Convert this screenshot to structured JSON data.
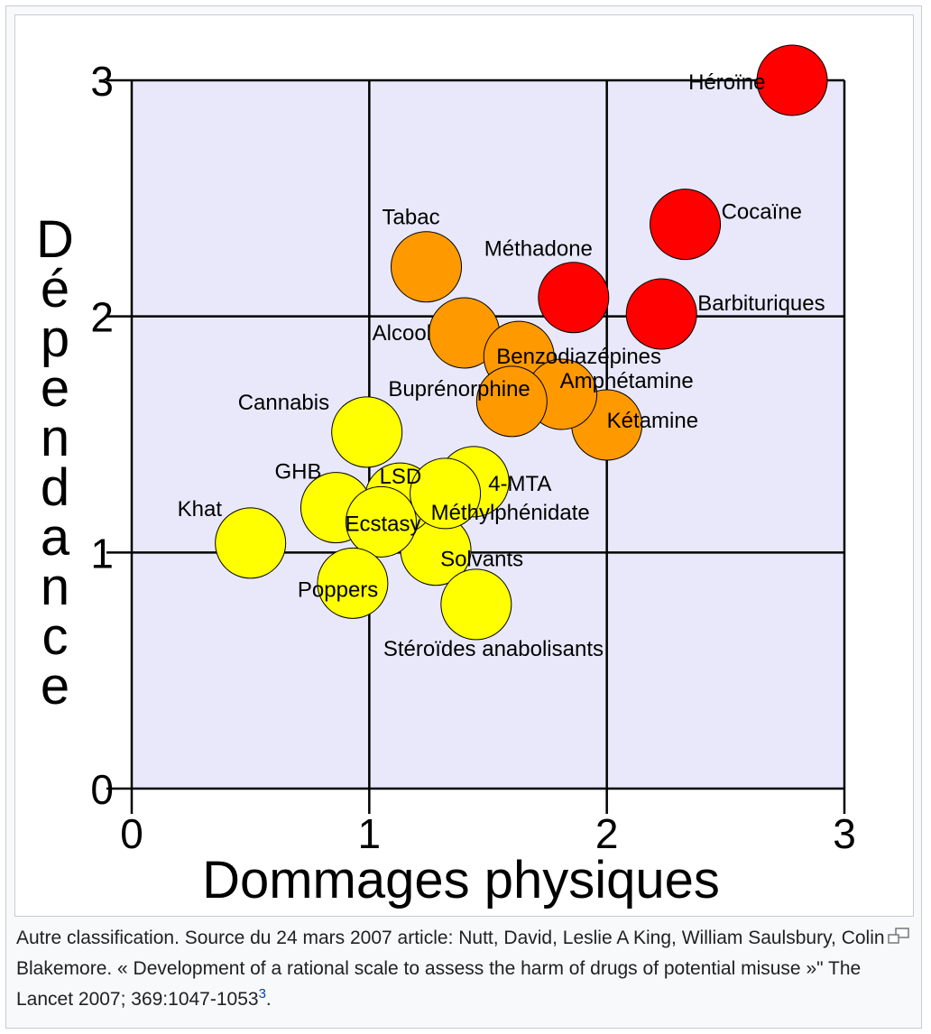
{
  "caption": {
    "text": "Autre classification. Source du 24 mars 2007 article: Nutt, David, Leslie A King, William Saulsbury, Colin Blakemore. « Development of a rational scale to assess the harm of drugs of potential misuse »\" The Lancet 2007; 369:1047-1053",
    "footnote": "3",
    "trailing": ".",
    "enlarge_icon": "magnify-clip-icon"
  },
  "colors": {
    "plot_background": "#e8e8fa",
    "grid": "#000000",
    "yellow": "#ffff00",
    "orange": "#ff9900",
    "red": "#ff0000"
  },
  "chart_data": {
    "type": "scatter",
    "title": "",
    "xlabel": "Dommages physiques",
    "ylabel": "Dépendance",
    "xlim": [
      0,
      3
    ],
    "ylim": [
      0,
      3
    ],
    "xticks": [
      "0",
      "1",
      "2",
      "3"
    ],
    "yticks": [
      "0",
      "1",
      "2",
      "3"
    ],
    "grid": true,
    "points": [
      {
        "label": "Héroïne",
        "x": 2.78,
        "y": 3.0,
        "color": "red"
      },
      {
        "label": "Cocaïne",
        "x": 2.33,
        "y": 2.39,
        "color": "red"
      },
      {
        "label": "Barbituriques",
        "x": 2.23,
        "y": 2.01,
        "color": "red"
      },
      {
        "label": "Méthadone",
        "x": 1.86,
        "y": 2.08,
        "color": "red"
      },
      {
        "label": "Alcool",
        "x": 1.4,
        "y": 1.93,
        "color": "orange"
      },
      {
        "label": "Kétamine",
        "x": 2.0,
        "y": 1.54,
        "color": "orange"
      },
      {
        "label": "Benzodiazépines",
        "x": 1.63,
        "y": 1.83,
        "color": "orange"
      },
      {
        "label": "Amphétamine",
        "x": 1.81,
        "y": 1.67,
        "color": "orange"
      },
      {
        "label": "Tabac",
        "x": 1.24,
        "y": 2.21,
        "color": "orange"
      },
      {
        "label": "Buprénorphine",
        "x": 1.6,
        "y": 1.64,
        "color": "orange"
      },
      {
        "label": "Cannabis",
        "x": 0.99,
        "y": 1.51,
        "color": "yellow"
      },
      {
        "label": "Solvants",
        "x": 1.28,
        "y": 1.01,
        "color": "yellow"
      },
      {
        "label": "4-MTA",
        "x": 1.44,
        "y": 1.3,
        "color": "yellow"
      },
      {
        "label": "LSD",
        "x": 1.13,
        "y": 1.23,
        "color": "yellow"
      },
      {
        "label": "Méthylphénidate",
        "x": 1.32,
        "y": 1.25,
        "color": "yellow"
      },
      {
        "label": "Stéroïdes anabolisants",
        "x": 1.45,
        "y": 0.78,
        "color": "yellow"
      },
      {
        "label": "GHB",
        "x": 0.86,
        "y": 1.19,
        "color": "yellow"
      },
      {
        "label": "Ecstasy",
        "x": 1.05,
        "y": 1.13,
        "color": "yellow"
      },
      {
        "label": "Khat",
        "x": 0.5,
        "y": 1.04,
        "color": "yellow"
      },
      {
        "label": "Poppers",
        "x": 0.93,
        "y": 0.87,
        "color": "yellow"
      }
    ]
  }
}
